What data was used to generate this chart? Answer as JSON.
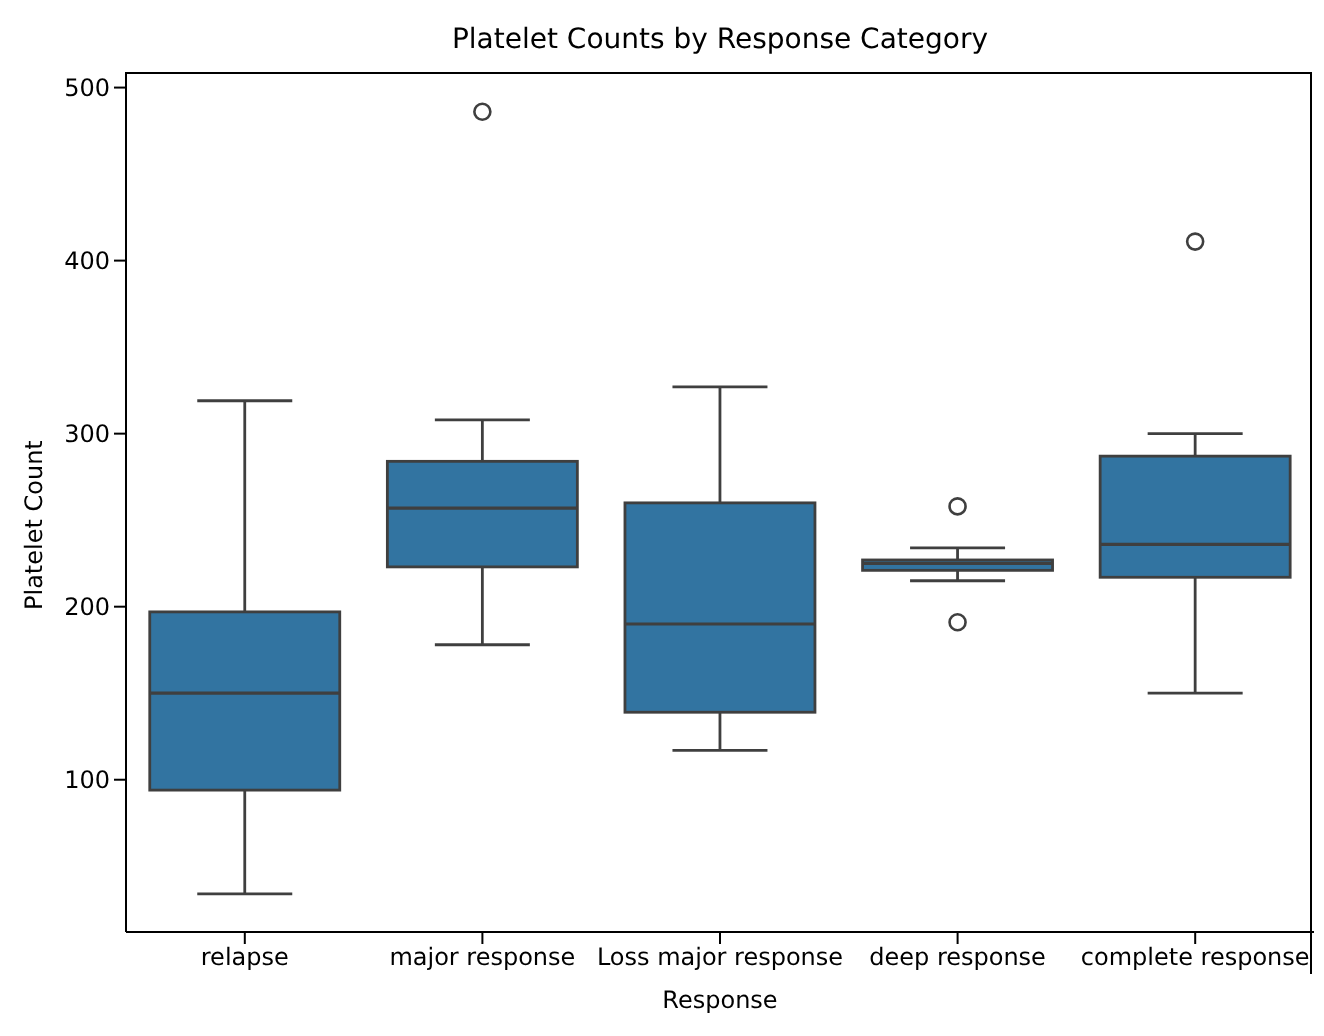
{
  "chart_data": {
    "type": "box",
    "title": "Platelet Counts by Response Category",
    "xlabel": "Response",
    "ylabel": "Platelet Count",
    "categories": [
      "relapse",
      "major response",
      "Loss major response",
      "deep response",
      "complete response"
    ],
    "color": "#3274a1",
    "boxes": [
      {
        "low": 34,
        "q1": 94,
        "median": 150,
        "q3": 197,
        "high": 319
      },
      {
        "low": 178,
        "q1": 223,
        "median": 257,
        "q3": 284,
        "high": 308,
        "outliers": [
          486
        ]
      },
      {
        "low": 117,
        "q1": 139,
        "median": 190,
        "q3": 260,
        "high": 327
      },
      {
        "low": 215,
        "q1": 221,
        "median": 225,
        "q3": 227,
        "high": 234,
        "outliers": [
          258,
          191
        ]
      },
      {
        "low": 150,
        "q1": 217,
        "median": 236,
        "q3": 287,
        "high": 300,
        "outliers": [
          411
        ]
      }
    ],
    "ylim": [
      12,
      509
    ],
    "yticks": [
      100,
      200,
      300,
      400,
      500
    ]
  }
}
